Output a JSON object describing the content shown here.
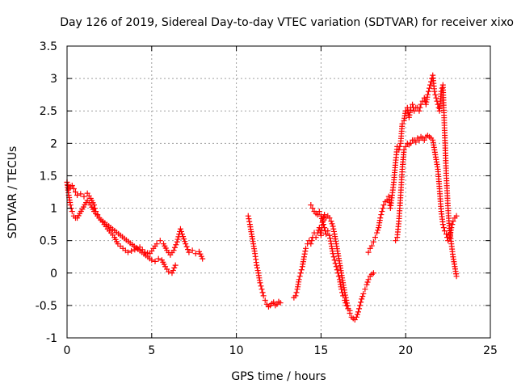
{
  "chart_data": {
    "type": "scatter",
    "title": "Day 126 of 2019, Sidereal Day-to-day VTEC variation (SDTVAR) for receiver xixo",
    "xlabel": "GPS time / hours",
    "ylabel": "SDTVAR / TECUs",
    "xlim": [
      0,
      25
    ],
    "ylim": [
      -1,
      3.5
    ],
    "xticks": [
      "0",
      "5",
      "10",
      "15",
      "20",
      "25"
    ],
    "yticks": [
      "-1",
      "-0.5",
      "0",
      "0.5",
      "1",
      "1.5",
      "2",
      "2.5",
      "3",
      "3.5"
    ],
    "grid": true,
    "marker": "+",
    "color": "#ff0000",
    "series": [
      {
        "name": "segment-1",
        "x": [
          0.0,
          0.1,
          0.2,
          0.3,
          0.4,
          0.5,
          0.6,
          0.8,
          1.0,
          1.2,
          1.4,
          1.6,
          1.7,
          1.8,
          1.9,
          2.0,
          2.2,
          2.4,
          2.6,
          2.8,
          3.0,
          3.3,
          3.6,
          4.0,
          4.3,
          4.6,
          4.9,
          5.1,
          5.3,
          5.5,
          5.7,
          5.9,
          6.1,
          6.3,
          6.5,
          6.7,
          6.8,
          7.0,
          7.2,
          7.4,
          7.6,
          7.8,
          8.0
        ],
        "y": [
          1.4,
          1.3,
          1.33,
          1.35,
          1.3,
          1.25,
          1.2,
          1.22,
          1.18,
          1.23,
          1.15,
          1.05,
          0.95,
          0.9,
          0.85,
          0.82,
          0.75,
          0.68,
          0.62,
          0.55,
          0.45,
          0.38,
          0.32,
          0.36,
          0.4,
          0.32,
          0.3,
          0.38,
          0.45,
          0.5,
          0.45,
          0.35,
          0.28,
          0.35,
          0.48,
          0.68,
          0.6,
          0.45,
          0.32,
          0.35,
          0.3,
          0.33,
          0.22
        ]
      },
      {
        "name": "segment-2",
        "x": [
          0.0,
          0.1,
          0.2,
          0.3,
          0.4,
          0.5,
          0.6,
          1.2,
          1.4,
          1.6,
          1.8,
          2.0,
          5.0,
          5.2,
          5.4,
          5.6,
          5.8,
          6.0,
          6.2,
          6.4
        ],
        "y": [
          1.4,
          1.2,
          1.05,
          0.95,
          0.88,
          0.85,
          0.85,
          1.12,
          1.05,
          0.95,
          0.88,
          0.82,
          0.2,
          0.18,
          0.22,
          0.2,
          0.1,
          0.02,
          0.0,
          0.12
        ]
      },
      {
        "name": "segment-3",
        "x": [
          10.7,
          10.8,
          10.9,
          11.0,
          11.1,
          11.2,
          11.3,
          11.4,
          11.5,
          11.6,
          11.7,
          11.8,
          11.9,
          12.0,
          12.1,
          12.2,
          12.3,
          12.4,
          12.5,
          12.6
        ],
        "y": [
          0.88,
          0.75,
          0.6,
          0.45,
          0.3,
          0.12,
          0.0,
          -0.15,
          -0.25,
          -0.35,
          -0.42,
          -0.48,
          -0.52,
          -0.5,
          -0.47,
          -0.45,
          -0.5,
          -0.48,
          -0.44,
          -0.46
        ]
      },
      {
        "name": "segment-4",
        "x": [
          13.4,
          13.5,
          13.6,
          13.7,
          13.8,
          13.9,
          14.0,
          14.1,
          14.2,
          14.3,
          14.4,
          14.5,
          14.6,
          14.7,
          14.8,
          14.9,
          15.0,
          15.1,
          15.2,
          15.3,
          15.4,
          15.5,
          15.6,
          15.7,
          15.8,
          15.9,
          16.0,
          16.1,
          16.2,
          16.3,
          16.4,
          16.5,
          16.6,
          16.7,
          16.8,
          16.9,
          17.0,
          17.1,
          17.2,
          17.3,
          17.4,
          17.5,
          17.6,
          17.7,
          17.8,
          17.9,
          18.0,
          18.1
        ],
        "y": [
          -0.38,
          -0.35,
          -0.25,
          -0.1,
          0.0,
          0.1,
          0.25,
          0.38,
          0.45,
          0.5,
          0.45,
          0.55,
          0.62,
          0.55,
          0.62,
          0.7,
          0.58,
          0.82,
          0.9,
          0.85,
          0.88,
          0.85,
          0.8,
          0.72,
          0.6,
          0.45,
          0.3,
          0.15,
          0.0,
          -0.15,
          -0.3,
          -0.42,
          -0.55,
          -0.62,
          -0.68,
          -0.7,
          -0.72,
          -0.68,
          -0.6,
          -0.5,
          -0.4,
          -0.32,
          -0.25,
          -0.18,
          -0.1,
          -0.05,
          -0.02,
          0.0
        ]
      },
      {
        "name": "segment-5",
        "x": [
          14.4,
          14.5,
          14.6,
          14.7,
          14.8,
          14.9,
          15.0,
          15.1,
          15.2,
          15.3,
          15.4,
          15.5,
          15.6,
          15.7,
          15.8,
          15.9,
          16.0,
          16.1,
          16.2,
          16.3,
          16.4,
          16.5,
          16.6,
          16.7
        ],
        "y": [
          1.05,
          1.0,
          0.95,
          0.92,
          0.9,
          0.95,
          0.88,
          0.8,
          0.7,
          0.6,
          0.65,
          0.58,
          0.45,
          0.3,
          0.2,
          0.1,
          0.0,
          -0.1,
          -0.25,
          -0.35,
          -0.42,
          -0.5,
          -0.55,
          -0.58
        ]
      },
      {
        "name": "segment-6",
        "x": [
          17.8,
          17.9,
          18.0,
          18.1,
          18.2,
          18.3,
          18.4,
          18.5,
          18.6,
          18.7,
          18.8,
          18.9,
          19.0,
          19.1,
          19.2,
          19.3,
          19.4,
          19.5,
          19.6,
          19.7,
          19.8,
          19.9,
          20.0,
          20.1,
          20.2,
          20.3,
          20.4,
          20.5,
          20.6,
          20.7,
          20.8,
          20.9,
          21.0,
          21.1,
          21.2,
          21.3,
          21.4,
          21.5,
          21.6,
          21.7,
          21.8,
          21.9,
          22.0,
          22.1,
          22.2,
          22.3,
          22.4,
          22.5,
          22.6,
          22.7,
          22.8,
          22.9,
          23.0
        ],
        "y": [
          0.32,
          0.38,
          0.42,
          0.48,
          0.55,
          0.62,
          0.7,
          0.85,
          0.95,
          1.05,
          1.1,
          1.12,
          1.18,
          1.0,
          1.2,
          1.4,
          1.7,
          1.95,
          1.9,
          2.0,
          2.3,
          2.35,
          2.5,
          2.55,
          2.4,
          2.55,
          2.6,
          2.5,
          2.55,
          2.55,
          2.5,
          2.6,
          2.65,
          2.7,
          2.6,
          2.75,
          2.85,
          2.95,
          3.05,
          2.8,
          2.7,
          2.6,
          2.5,
          2.8,
          2.9,
          2.2,
          1.5,
          1.0,
          0.65,
          0.45,
          0.25,
          0.1,
          -0.05
        ]
      },
      {
        "name": "segment-7",
        "x": [
          19.4,
          19.5,
          19.6,
          19.7,
          19.8,
          19.9,
          20.0,
          20.1,
          20.2,
          20.3,
          20.4,
          20.5,
          20.6,
          20.7,
          20.8,
          20.9,
          21.0,
          21.1,
          21.2,
          21.3,
          21.4,
          21.5,
          21.6,
          21.7,
          21.8,
          21.9,
          22.0,
          22.1,
          22.2,
          22.3,
          22.4,
          22.5,
          22.6,
          22.7,
          22.8,
          22.9,
          23.0
        ],
        "y": [
          0.5,
          0.55,
          0.8,
          1.2,
          1.6,
          1.9,
          1.95,
          2.0,
          1.98,
          2.0,
          2.05,
          2.05,
          2.02,
          2.08,
          2.05,
          2.1,
          2.08,
          2.05,
          2.1,
          2.12,
          2.1,
          2.08,
          2.05,
          1.9,
          1.75,
          1.6,
          1.3,
          0.95,
          0.75,
          0.65,
          0.6,
          0.5,
          0.55,
          0.7,
          0.8,
          0.85,
          0.88
        ]
      }
    ]
  }
}
